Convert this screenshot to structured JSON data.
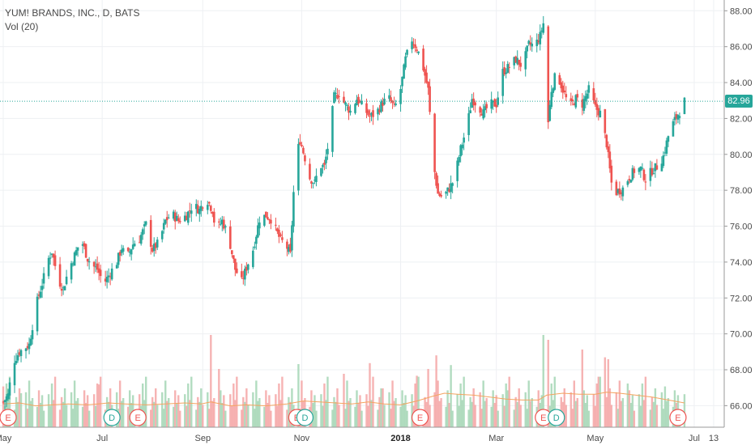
{
  "chart_data": {
    "type": "candlestick",
    "title": "YUM! BRANDS, INC., D, BATS",
    "volume_label": "Vol (20)",
    "last_price": "82.96",
    "y_ticks": [
      "88.00",
      "86.00",
      "84.00",
      "82.00",
      "80.00",
      "78.00",
      "76.00",
      "74.00",
      "72.00",
      "70.00",
      "68.00",
      "66.00"
    ],
    "x_ticks": [
      {
        "label": "May",
        "day": 0
      },
      {
        "label": "Jul",
        "day": 61
      },
      {
        "label": "Sep",
        "day": 123
      },
      {
        "label": "Nov",
        "day": 184
      },
      {
        "label": "2018",
        "day": 245,
        "bold": true
      },
      {
        "label": "Mar",
        "day": 304
      },
      {
        "label": "May",
        "day": 365
      },
      {
        "label": "Jul",
        "day": 426
      },
      {
        "label": "13",
        "day": 438
      }
    ],
    "ylim": [
      64.8,
      88.6
    ],
    "x_range_days": [
      -2,
      444
    ],
    "grid": true,
    "colors": {
      "up": "#26a69a",
      "down": "#ef5350",
      "up_vol": "#a5d6b5",
      "down_vol": "#f4a6a6",
      "vol_ma": "#f4a460",
      "price_line": "#26a69a"
    },
    "price_anchors": [
      [
        0,
        66.2
      ],
      [
        3,
        66.6
      ],
      [
        6,
        68.4
      ],
      [
        10,
        69.0
      ],
      [
        13,
        69.2
      ],
      [
        16,
        69.4
      ],
      [
        20,
        71.5
      ],
      [
        24,
        72.8
      ],
      [
        28,
        74.2
      ],
      [
        30,
        74.6
      ],
      [
        34,
        73.0
      ],
      [
        37,
        72.5
      ],
      [
        40,
        73.5
      ],
      [
        45,
        74.6
      ],
      [
        48,
        75.3
      ],
      [
        52,
        74.2
      ],
      [
        55,
        73.8
      ],
      [
        58,
        73.6
      ],
      [
        62,
        72.8
      ],
      [
        66,
        73.4
      ],
      [
        70,
        74.0
      ],
      [
        73,
        74.8
      ],
      [
        76,
        74.2
      ],
      [
        80,
        75.0
      ],
      [
        84,
        75.3
      ],
      [
        88,
        76.1
      ],
      [
        92,
        74.7
      ],
      [
        96,
        75.1
      ],
      [
        100,
        76.3
      ],
      [
        104,
        76.7
      ],
      [
        108,
        76.3
      ],
      [
        113,
        76.6
      ],
      [
        117,
        77.2
      ],
      [
        121,
        76.9
      ],
      [
        125,
        77.6
      ],
      [
        129,
        76.9
      ],
      [
        131,
        75.7
      ],
      [
        135,
        76.3
      ],
      [
        139,
        75.4
      ],
      [
        143,
        73.6
      ],
      [
        147,
        72.9
      ],
      [
        150,
        73.7
      ],
      [
        154,
        74.7
      ],
      [
        158,
        76.4
      ],
      [
        162,
        76.6
      ],
      [
        165,
        76.4
      ],
      [
        168,
        75.8
      ],
      [
        171,
        75.2
      ],
      [
        174,
        75.0
      ],
      [
        177,
        74.4
      ],
      [
        180,
        79.6
      ],
      [
        183,
        80.8
      ],
      [
        186,
        79.8
      ],
      [
        189,
        78.7
      ],
      [
        192,
        78.4
      ],
      [
        195,
        79.4
      ],
      [
        198,
        79.3
      ],
      [
        201,
        80.9
      ],
      [
        204,
        83.2
      ],
      [
        207,
        83.4
      ],
      [
        210,
        82.9
      ],
      [
        214,
        82.4
      ],
      [
        218,
        83.1
      ],
      [
        222,
        82.6
      ],
      [
        226,
        82.1
      ],
      [
        230,
        82.3
      ],
      [
        234,
        82.9
      ],
      [
        238,
        83.1
      ],
      [
        241,
        82.6
      ],
      [
        244,
        83.1
      ],
      [
        248,
        85.3
      ],
      [
        252,
        86.4
      ],
      [
        255,
        85.9
      ],
      [
        258,
        85.2
      ],
      [
        262,
        83.6
      ],
      [
        265,
        79.6
      ],
      [
        268,
        77.8
      ],
      [
        271,
        77.6
      ],
      [
        275,
        78.1
      ],
      [
        278,
        78.6
      ],
      [
        282,
        80.3
      ],
      [
        286,
        81.6
      ],
      [
        289,
        83.1
      ],
      [
        292,
        82.8
      ],
      [
        296,
        82.3
      ],
      [
        300,
        82.8
      ],
      [
        304,
        82.8
      ],
      [
        308,
        84.6
      ],
      [
        312,
        84.9
      ],
      [
        316,
        85.3
      ],
      [
        320,
        84.9
      ],
      [
        324,
        86.1
      ],
      [
        328,
        86.1
      ],
      [
        331,
        86.6
      ],
      [
        333,
        87.3
      ],
      [
        334,
        86.3
      ],
      [
        335,
        80.9
      ],
      [
        338,
        83.6
      ],
      [
        341,
        84.6
      ],
      [
        345,
        83.6
      ],
      [
        349,
        82.6
      ],
      [
        353,
        83.1
      ],
      [
        357,
        82.8
      ],
      [
        361,
        83.6
      ],
      [
        365,
        82.6
      ],
      [
        368,
        82.3
      ],
      [
        372,
        80.6
      ],
      [
        375,
        78.4
      ],
      [
        378,
        77.9
      ],
      [
        382,
        78.1
      ],
      [
        385,
        78.6
      ],
      [
        389,
        79.1
      ],
      [
        393,
        79.2
      ],
      [
        396,
        78.6
      ],
      [
        400,
        79.1
      ],
      [
        404,
        79.4
      ],
      [
        407,
        79.9
      ],
      [
        411,
        81.4
      ],
      [
        414,
        81.9
      ],
      [
        417,
        82.4
      ],
      [
        420,
        82.96
      ]
    ],
    "volume_pattern": [
      0.34,
      0.22,
      0.45,
      0.28,
      0.52,
      0.18,
      0.31,
      0.26,
      0.4,
      0.23,
      0.36,
      0.19,
      0.48,
      0.27,
      0.3,
      0.21,
      0.38,
      0.25,
      0.33,
      0.17
    ],
    "volume_spikes": [
      [
        0,
        0.42
      ],
      [
        3,
        0.4
      ],
      [
        6,
        0.55
      ],
      [
        11,
        0.35
      ],
      [
        59,
        0.44
      ],
      [
        61,
        0.3
      ],
      [
        75,
        0.37
      ],
      [
        89,
        0.32
      ],
      [
        111,
        0.36
      ],
      [
        128,
        0.95
      ],
      [
        133,
        0.6
      ],
      [
        166,
        0.41
      ],
      [
        174,
        0.47
      ],
      [
        180,
        0.75
      ],
      [
        182,
        0.65
      ],
      [
        188,
        0.5
      ],
      [
        201,
        0.58
      ],
      [
        210,
        0.55
      ],
      [
        215,
        0.5
      ],
      [
        226,
        0.66
      ],
      [
        233,
        0.4
      ],
      [
        243,
        0.45
      ],
      [
        255,
        0.53
      ],
      [
        262,
        0.6
      ],
      [
        265,
        0.68
      ],
      [
        267,
        0.74
      ],
      [
        276,
        0.64
      ],
      [
        279,
        0.55
      ],
      [
        293,
        0.44
      ],
      [
        311,
        0.38
      ],
      [
        333,
        0.95
      ],
      [
        334,
        0.55
      ],
      [
        336,
        0.9
      ],
      [
        342,
        0.48
      ],
      [
        357,
        0.8
      ],
      [
        367,
        0.52
      ],
      [
        371,
        0.72
      ],
      [
        373,
        0.7
      ],
      [
        377,
        0.65
      ],
      [
        385,
        0.45
      ],
      [
        398,
        0.38
      ],
      [
        408,
        0.42
      ],
      [
        412,
        0.6
      ]
    ],
    "volume_ma_anchors": [
      [
        0,
        0.24
      ],
      [
        10,
        0.25
      ],
      [
        20,
        0.22
      ],
      [
        30,
        0.23
      ],
      [
        40,
        0.24
      ],
      [
        52,
        0.23
      ],
      [
        65,
        0.25
      ],
      [
        75,
        0.24
      ],
      [
        88,
        0.23
      ],
      [
        100,
        0.24
      ],
      [
        112,
        0.25
      ],
      [
        122,
        0.24
      ],
      [
        128,
        0.26
      ],
      [
        140,
        0.22
      ],
      [
        150,
        0.23
      ],
      [
        162,
        0.22
      ],
      [
        175,
        0.24
      ],
      [
        185,
        0.27
      ],
      [
        195,
        0.26
      ],
      [
        205,
        0.25
      ],
      [
        215,
        0.24
      ],
      [
        225,
        0.26
      ],
      [
        235,
        0.24
      ],
      [
        245,
        0.23
      ],
      [
        255,
        0.27
      ],
      [
        265,
        0.32
      ],
      [
        272,
        0.35
      ],
      [
        280,
        0.34
      ],
      [
        290,
        0.33
      ],
      [
        300,
        0.31
      ],
      [
        310,
        0.29
      ],
      [
        320,
        0.28
      ],
      [
        330,
        0.28
      ],
      [
        335,
        0.33
      ],
      [
        345,
        0.35
      ],
      [
        355,
        0.34
      ],
      [
        365,
        0.34
      ],
      [
        372,
        0.36
      ],
      [
        380,
        0.35
      ],
      [
        390,
        0.33
      ],
      [
        400,
        0.31
      ],
      [
        410,
        0.28
      ],
      [
        420,
        0.25
      ]
    ],
    "markers": [
      {
        "type": "E",
        "day": 3
      },
      {
        "type": "D",
        "day": 67
      },
      {
        "type": "E",
        "day": 83
      },
      {
        "type": "E",
        "day": 181
      },
      {
        "type": "D",
        "day": 186
      },
      {
        "type": "E",
        "day": 257
      },
      {
        "type": "E",
        "day": 333
      },
      {
        "type": "D",
        "day": 341
      },
      {
        "type": "E",
        "day": 416
      }
    ]
  }
}
